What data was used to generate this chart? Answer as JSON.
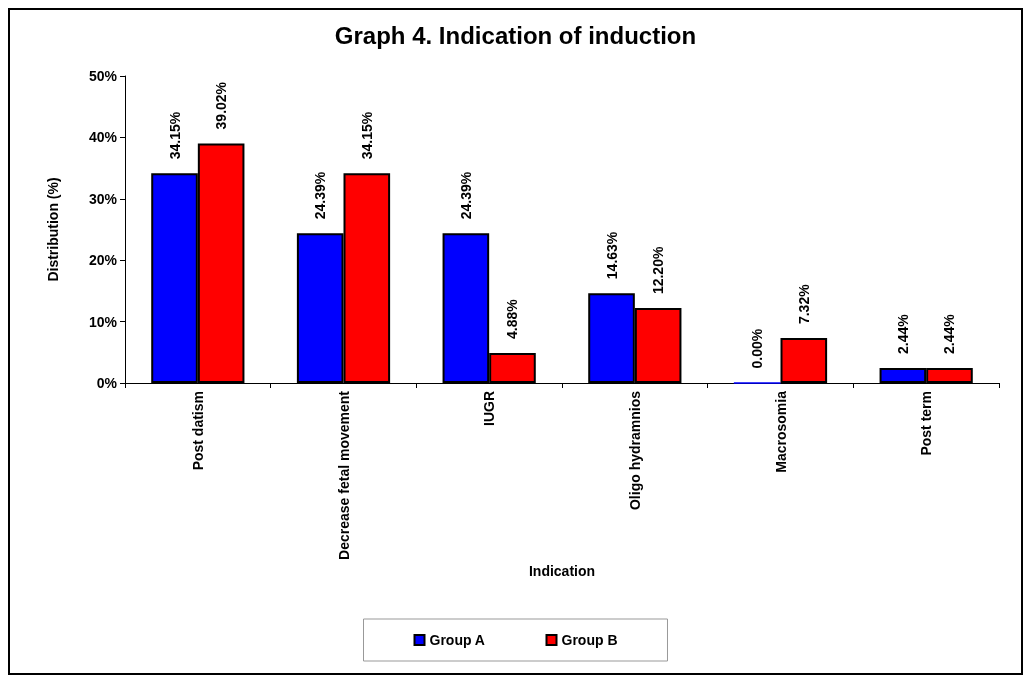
{
  "chart_data": {
    "type": "bar",
    "title": "Graph 4. Indication of induction",
    "xlabel": "Indication",
    "ylabel": "Distribution (%)",
    "categories": [
      "Post datism",
      "Decrease fetal movement",
      "IUGR",
      "Oligo hydramnios",
      "Macrosomia",
      "Post term"
    ],
    "series": [
      {
        "name": "Group A",
        "color": "#0000ff",
        "values": [
          34.15,
          24.39,
          24.39,
          14.63,
          0,
          2.44
        ],
        "value_labels": [
          "34.15%",
          "24.39%",
          "24.39%",
          "14.63%",
          "0.00%",
          "2.44%"
        ]
      },
      {
        "name": "Group B",
        "color": "#ff0000",
        "values": [
          39.02,
          34.15,
          4.88,
          12.2,
          7.32,
          2.44
        ],
        "value_labels": [
          "39.02%",
          "34.15%",
          "4.88%",
          "12.20%",
          "7.32%",
          "2.44%"
        ]
      }
    ],
    "ylim": [
      0,
      50
    ],
    "yticks": [
      {
        "value": 0,
        "label": "0%"
      },
      {
        "value": 10,
        "label": "10%"
      },
      {
        "value": 20,
        "label": "20%"
      },
      {
        "value": 30,
        "label": "30%"
      },
      {
        "value": 40,
        "label": "40%"
      },
      {
        "value": 50,
        "label": "50%"
      }
    ],
    "grid": false,
    "legend": "bottom"
  }
}
